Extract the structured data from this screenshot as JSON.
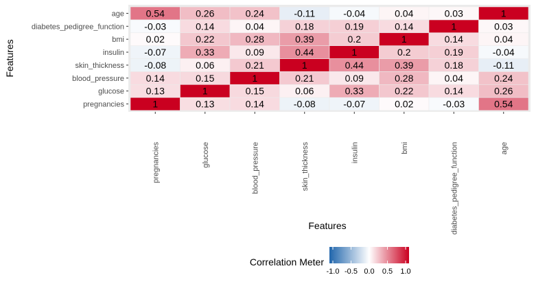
{
  "chart_data": {
    "type": "heatmap",
    "xlabel": "Features",
    "ylabel": "Features",
    "x_categories": [
      "pregnancies",
      "glucose",
      "blood_pressure",
      "skin_thickness",
      "insulin",
      "bmi",
      "diabetes_pedigree_function",
      "age"
    ],
    "y_categories_bottom_to_top": [
      "pregnancies",
      "glucose",
      "blood_pressure",
      "skin_thickness",
      "insulin",
      "bmi",
      "diabetes_pedigree_function",
      "age"
    ],
    "values": [
      [
        1,
        0.13,
        0.14,
        -0.08,
        -0.07,
        0.02,
        -0.03,
        0.54
      ],
      [
        0.13,
        1,
        0.15,
        0.06,
        0.33,
        0.22,
        0.14,
        0.26
      ],
      [
        0.14,
        0.15,
        1,
        0.21,
        0.09,
        0.28,
        0.04,
        0.24
      ],
      [
        -0.08,
        0.06,
        0.21,
        1,
        0.44,
        0.39,
        0.18,
        -0.11
      ],
      [
        -0.07,
        0.33,
        0.09,
        0.44,
        1,
        0.2,
        0.19,
        -0.04
      ],
      [
        0.02,
        0.22,
        0.28,
        0.39,
        0.2,
        1,
        0.14,
        0.04
      ],
      [
        -0.03,
        0.14,
        0.04,
        0.18,
        0.19,
        0.14,
        1,
        0.03
      ],
      [
        0.54,
        0.26,
        0.24,
        -0.11,
        -0.04,
        0.04,
        0.03,
        1
      ]
    ],
    "value_labels": [
      [
        "1",
        "0.13",
        "0.14",
        "-0.08",
        "-0.07",
        "0.02",
        "-0.03",
        "0.54"
      ],
      [
        "0.13",
        "1",
        "0.15",
        "0.06",
        "0.33",
        "0.22",
        "0.14",
        "0.26"
      ],
      [
        "0.14",
        "0.15",
        "1",
        "0.21",
        "0.09",
        "0.28",
        "0.04",
        "0.24"
      ],
      [
        "-0.08",
        "0.06",
        "0.21",
        "1",
        "0.44",
        "0.39",
        "0.18",
        "-0.11"
      ],
      [
        "-0.07",
        "0.33",
        "0.09",
        "0.44",
        "1",
        "0.2",
        "0.19",
        "-0.04"
      ],
      [
        "0.02",
        "0.22",
        "0.28",
        "0.39",
        "0.2",
        "1",
        "0.14",
        "0.04"
      ],
      [
        "-0.03",
        "0.14",
        "0.04",
        "0.18",
        "0.19",
        "0.14",
        "1",
        "0.03"
      ],
      [
        "0.54",
        "0.26",
        "0.24",
        "-0.11",
        "-0.04",
        "0.04",
        "0.03",
        "1"
      ]
    ],
    "color_scale": {
      "low": "#2166ac",
      "mid": "#ffffff",
      "high": "#ca0020",
      "limits": [
        -1,
        1
      ]
    },
    "legend": {
      "title": "Correlation Meter",
      "ticks": [
        -1.0,
        -0.5,
        0.0,
        0.5,
        1.0
      ],
      "tick_labels": [
        "-1.0",
        "-0.5",
        "0.0",
        "0.5",
        "1.0"
      ],
      "position": "bottom"
    },
    "panel_background": "#ebebeb",
    "grid": true
  }
}
